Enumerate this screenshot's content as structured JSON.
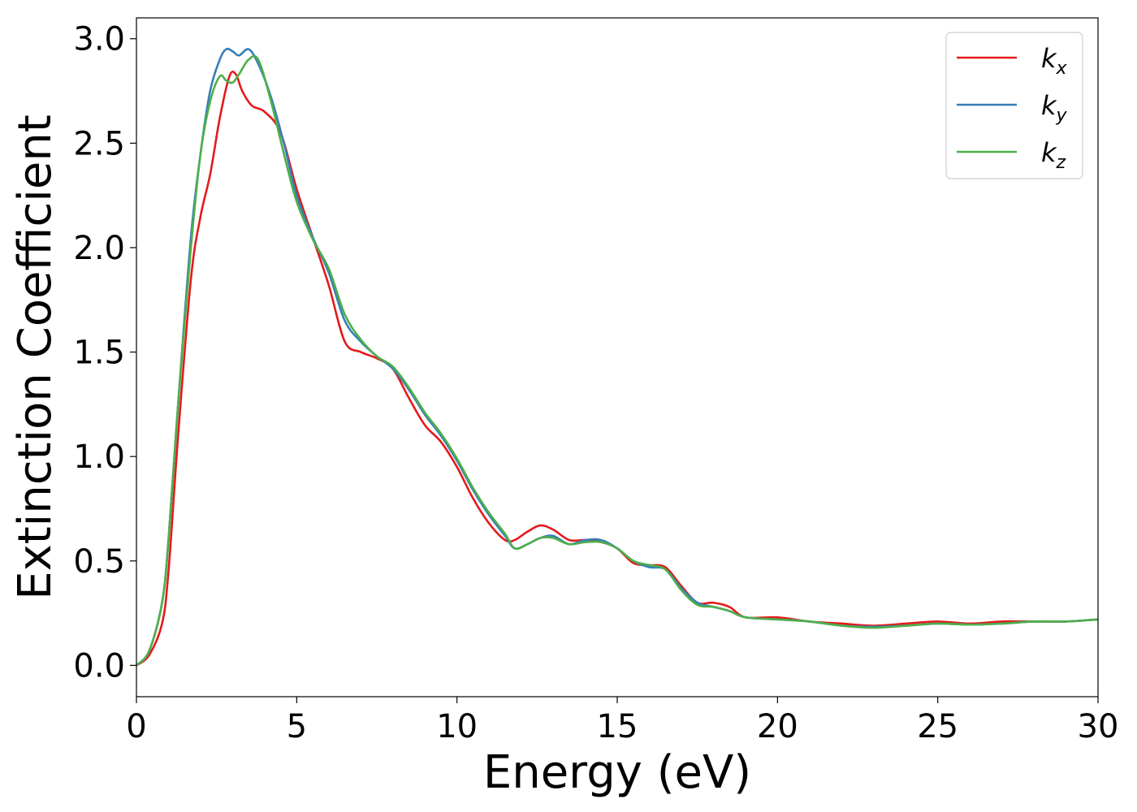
{
  "chart_data": {
    "type": "line",
    "xlabel": "Energy (eV)",
    "ylabel": "Extinction Coefficient",
    "xlim": [
      0,
      30
    ],
    "ylim": [
      -0.15,
      3.1
    ],
    "xticks": [
      "0",
      "5",
      "10",
      "15",
      "20",
      "25",
      "30"
    ],
    "yticks": [
      "0.0",
      "0.5",
      "1.0",
      "1.5",
      "2.0",
      "2.5",
      "3.0"
    ],
    "grid": false,
    "legend_position": "top-right",
    "series": [
      {
        "name": "k",
        "subscript": "x",
        "color": "#e41a1c",
        "x": [
          0,
          0.4,
          0.8,
          1.0,
          1.3,
          1.7,
          2.0,
          2.3,
          2.6,
          2.9,
          3.1,
          3.3,
          3.6,
          4.0,
          4.5,
          5.0,
          5.5,
          6.0,
          6.5,
          7.0,
          7.5,
          8.0,
          8.5,
          9.0,
          9.5,
          10.0,
          10.5,
          11.0,
          11.5,
          11.8,
          12.2,
          12.6,
          13.0,
          13.5,
          14.0,
          14.5,
          15.0,
          15.5,
          16.0,
          16.5,
          17.0,
          17.5,
          18.0,
          18.5,
          19.0,
          20.0,
          21.0,
          22.0,
          23.0,
          24.0,
          25.0,
          26.0,
          27.0,
          28.0,
          29.0,
          30.0
        ],
        "y": [
          0.0,
          0.05,
          0.2,
          0.45,
          1.1,
          1.85,
          2.15,
          2.35,
          2.62,
          2.82,
          2.83,
          2.75,
          2.68,
          2.65,
          2.55,
          2.28,
          2.05,
          1.82,
          1.55,
          1.5,
          1.47,
          1.42,
          1.28,
          1.15,
          1.07,
          0.95,
          0.8,
          0.68,
          0.6,
          0.6,
          0.64,
          0.67,
          0.65,
          0.6,
          0.6,
          0.59,
          0.56,
          0.49,
          0.48,
          0.47,
          0.38,
          0.3,
          0.3,
          0.28,
          0.23,
          0.23,
          0.21,
          0.2,
          0.19,
          0.2,
          0.21,
          0.2,
          0.21,
          0.21,
          0.21,
          0.22
        ]
      },
      {
        "name": "k",
        "subscript": "y",
        "color": "#377eb8",
        "x": [
          0,
          0.4,
          0.8,
          1.0,
          1.3,
          1.7,
          2.0,
          2.3,
          2.6,
          2.8,
          3.0,
          3.2,
          3.5,
          3.8,
          4.2,
          4.6,
          5.0,
          5.5,
          6.0,
          6.5,
          7.0,
          7.5,
          8.0,
          8.5,
          9.0,
          9.5,
          10.0,
          10.5,
          11.0,
          11.5,
          11.8,
          12.2,
          12.6,
          13.0,
          13.5,
          14.0,
          14.5,
          15.0,
          15.5,
          16.0,
          16.5,
          17.0,
          17.5,
          18.0,
          18.5,
          19.0,
          20.0,
          21.0,
          22.0,
          23.0,
          24.0,
          25.0,
          26.0,
          27.0,
          28.0,
          29.0,
          30.0
        ],
        "y": [
          0.0,
          0.07,
          0.3,
          0.6,
          1.25,
          2.05,
          2.45,
          2.75,
          2.9,
          2.95,
          2.94,
          2.92,
          2.95,
          2.88,
          2.72,
          2.5,
          2.25,
          2.05,
          1.88,
          1.65,
          1.55,
          1.48,
          1.42,
          1.32,
          1.2,
          1.1,
          0.98,
          0.84,
          0.72,
          0.62,
          0.56,
          0.58,
          0.61,
          0.62,
          0.58,
          0.6,
          0.6,
          0.56,
          0.5,
          0.47,
          0.46,
          0.37,
          0.3,
          0.28,
          0.26,
          0.23,
          0.22,
          0.21,
          0.19,
          0.185,
          0.19,
          0.2,
          0.195,
          0.2,
          0.21,
          0.21,
          0.22
        ]
      },
      {
        "name": "k",
        "subscript": "z",
        "color": "#4daf4a",
        "x": [
          0,
          0.4,
          0.8,
          1.0,
          1.3,
          1.7,
          2.0,
          2.3,
          2.6,
          2.8,
          3.0,
          3.2,
          3.5,
          3.8,
          4.2,
          4.6,
          5.0,
          5.5,
          6.0,
          6.5,
          7.0,
          7.5,
          8.0,
          8.5,
          9.0,
          9.5,
          10.0,
          10.5,
          11.0,
          11.5,
          11.8,
          12.2,
          12.6,
          13.0,
          13.5,
          14.0,
          14.5,
          15.0,
          15.5,
          16.0,
          16.5,
          17.0,
          17.5,
          18.0,
          18.5,
          19.0,
          20.0,
          21.0,
          22.0,
          23.0,
          24.0,
          25.0,
          26.0,
          27.0,
          28.0,
          29.0,
          30.0
        ],
        "y": [
          0.0,
          0.07,
          0.3,
          0.6,
          1.25,
          2.0,
          2.45,
          2.7,
          2.82,
          2.8,
          2.79,
          2.83,
          2.9,
          2.9,
          2.7,
          2.45,
          2.22,
          2.04,
          1.9,
          1.68,
          1.56,
          1.48,
          1.43,
          1.33,
          1.21,
          1.11,
          0.99,
          0.85,
          0.73,
          0.63,
          0.56,
          0.58,
          0.61,
          0.61,
          0.58,
          0.59,
          0.59,
          0.56,
          0.5,
          0.48,
          0.46,
          0.36,
          0.29,
          0.28,
          0.26,
          0.23,
          0.22,
          0.21,
          0.19,
          0.18,
          0.19,
          0.2,
          0.195,
          0.2,
          0.21,
          0.21,
          0.22
        ]
      }
    ]
  }
}
